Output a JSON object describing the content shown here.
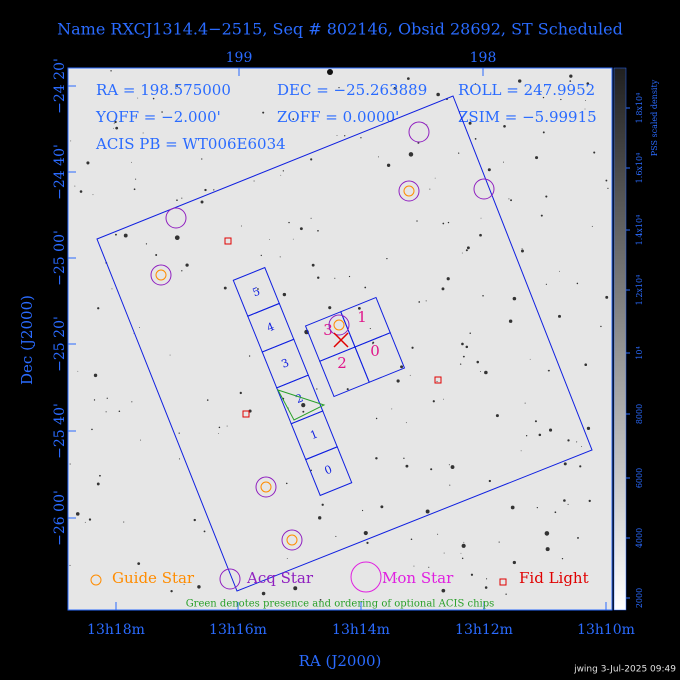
{
  "title": "Name RXCJ1314.4−2515, Seq # 802146, Obsid 28692, ST Scheduled",
  "top_axis": {
    "ticks": [
      "199",
      "198"
    ]
  },
  "bottom_axis": {
    "ticks": [
      "13h18m",
      "13h16m",
      "13h14m",
      "13h12m",
      "13h10m"
    ],
    "label": "RA (J2000)"
  },
  "left_axis": {
    "ticks": [
      "−24 20'",
      "−24 40'",
      "−25 00'",
      "−25 20'",
      "−25 40'",
      "−26 00'"
    ],
    "label": "Dec (J2000)"
  },
  "colorbar": {
    "ticks": [
      "2000",
      "4000",
      "6000",
      "8000",
      "10⁴",
      "1.2x10⁴",
      "1.4x10⁴",
      "1.6x10⁴",
      "1.8x10⁴"
    ],
    "label": "PSS scaled density"
  },
  "info": [
    [
      "RA = 198.575000",
      "DEC = −25.263889",
      "ROLL = 247.9952"
    ],
    [
      "YOFF = −2.000'",
      "ZOFF = 0.0000'",
      "ZSIM = −5.99915"
    ],
    [
      "ACIS PB = WT006E6034"
    ]
  ],
  "chips": {
    "s": [
      "5",
      "4",
      "3",
      "2",
      "1",
      "0"
    ],
    "i": [
      "1",
      "0",
      "2",
      "3"
    ]
  },
  "legend": [
    "Guide Star",
    "Acq Star",
    "Mon Star",
    "Fid Light"
  ],
  "footnote": "Green denotes presence and ordering of optional ACIS chips",
  "footer": "jwing  3-Jul-2025 09:49"
}
